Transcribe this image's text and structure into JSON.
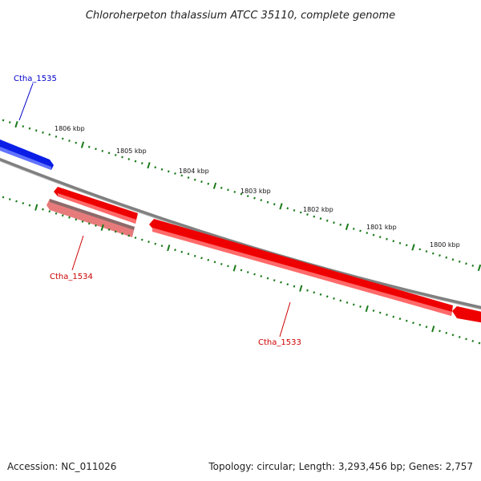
{
  "title": "Chloroherpeton thalassium ATCC 35110, complete genome",
  "accession": "Accession: NC_011026",
  "summary": "Topology: circular; Length: 3,293,456 bp; Genes: 2,757",
  "colors": {
    "backbone": "#808080",
    "ticks": "#1a7a1a",
    "forward_gene": "#0000ff",
    "reverse_gene": "#ff0000",
    "reverse_gene_alt": "#ef7f7f",
    "label_forward": "#0000cc",
    "label_reverse": "#cc0000"
  },
  "scale": {
    "labels": [
      "1806 kbp",
      "1805 kbp",
      "1804 kbp",
      "1803 kbp",
      "1802 kbp",
      "1801 kbp",
      "1800 kbp"
    ]
  },
  "genes": [
    {
      "id": "Ctha_1535",
      "label": "Ctha_1535",
      "strand": "forward"
    },
    {
      "id": "Ctha_1534",
      "label": "Ctha_1534",
      "strand": "reverse"
    },
    {
      "id": "Ctha_1533",
      "label": "Ctha_1533",
      "strand": "reverse"
    }
  ]
}
